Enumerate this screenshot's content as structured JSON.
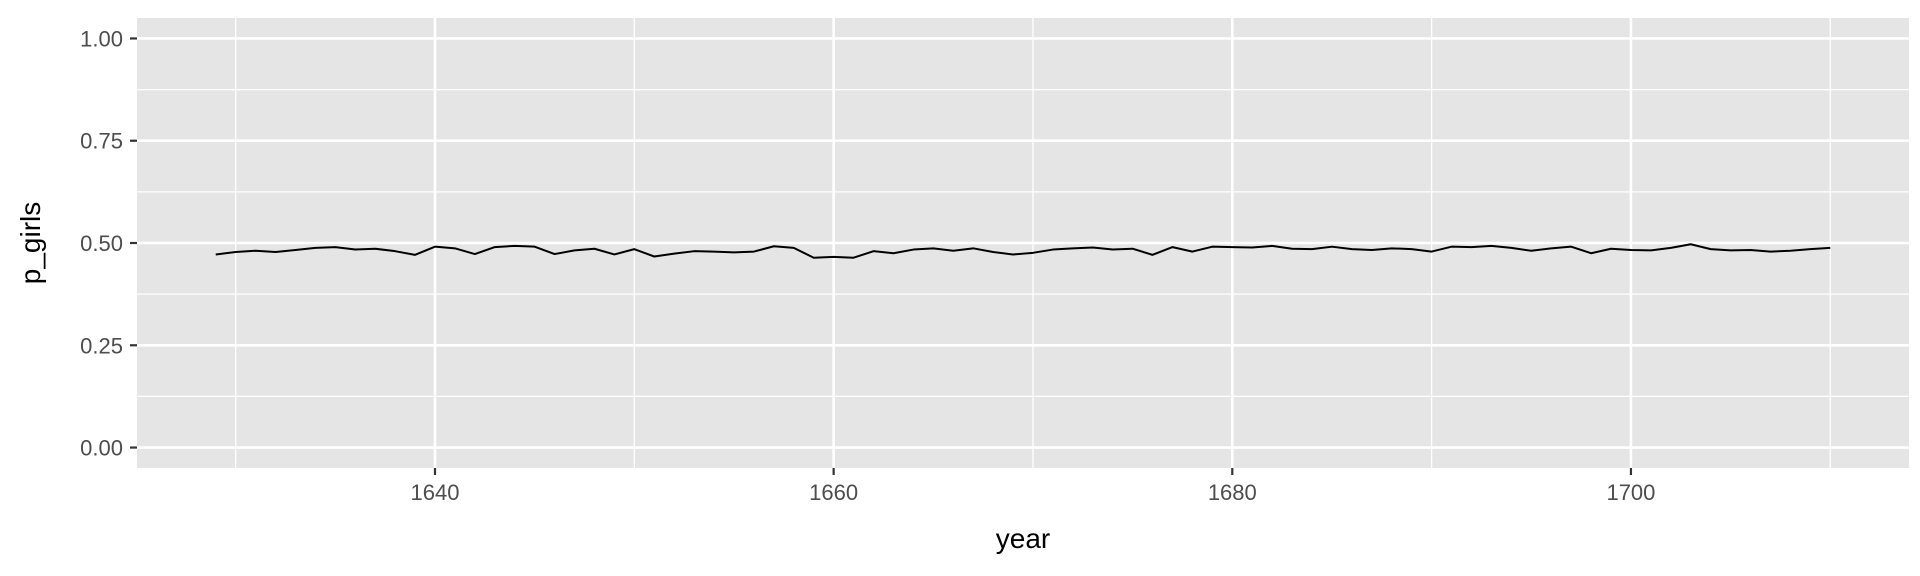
{
  "chart_data": {
    "type": "line",
    "title": "",
    "xlabel": "year",
    "ylabel": "p_girls",
    "xlim": [
      1625.05,
      1713.95
    ],
    "ylim": [
      -0.05,
      1.05
    ],
    "x_ticks": [
      1640,
      1660,
      1680,
      1700
    ],
    "x_tick_labels": [
      "1640",
      "1660",
      "1680",
      "1700"
    ],
    "x_minor_ticks": [
      1630,
      1650,
      1670,
      1690,
      1710
    ],
    "y_ticks": [
      0,
      0.25,
      0.5,
      0.75,
      1
    ],
    "y_tick_labels": [
      "0.00",
      "0.25",
      "0.50",
      "0.75",
      "1.00"
    ],
    "y_minor_ticks": [
      0.125,
      0.375,
      0.625,
      0.875
    ],
    "grid": true,
    "legend": "none",
    "colors": {
      "panel_background": "#e5e5e5",
      "grid_line": "#ffffff",
      "line": "#000000",
      "tick_mark": "#333333",
      "tick_label": "#4d4d4d",
      "axis_title": "#000000"
    },
    "series": [
      {
        "x": [
          1629,
          1630,
          1631,
          1632,
          1633,
          1634,
          1635,
          1636,
          1637,
          1638,
          1639,
          1640,
          1641,
          1642,
          1643,
          1644,
          1645,
          1646,
          1647,
          1648,
          1649,
          1650,
          1651,
          1652,
          1653,
          1654,
          1655,
          1656,
          1657,
          1658,
          1659,
          1660,
          1661,
          1662,
          1663,
          1664,
          1665,
          1666,
          1667,
          1668,
          1669,
          1670,
          1671,
          1672,
          1673,
          1674,
          1675,
          1676,
          1677,
          1678,
          1679,
          1680,
          1681,
          1682,
          1683,
          1684,
          1685,
          1686,
          1687,
          1688,
          1689,
          1690,
          1691,
          1692,
          1693,
          1694,
          1695,
          1696,
          1697,
          1698,
          1699,
          1700,
          1701,
          1702,
          1703,
          1704,
          1705,
          1706,
          1707,
          1708,
          1709,
          1710
        ],
        "values": [
          0.472,
          0.478,
          0.481,
          0.478,
          0.483,
          0.488,
          0.49,
          0.484,
          0.486,
          0.48,
          0.471,
          0.491,
          0.487,
          0.473,
          0.49,
          0.493,
          0.491,
          0.473,
          0.482,
          0.486,
          0.472,
          0.485,
          0.467,
          0.474,
          0.48,
          0.479,
          0.477,
          0.479,
          0.492,
          0.488,
          0.464,
          0.466,
          0.464,
          0.48,
          0.475,
          0.484,
          0.487,
          0.481,
          0.487,
          0.478,
          0.472,
          0.476,
          0.484,
          0.487,
          0.489,
          0.484,
          0.486,
          0.471,
          0.49,
          0.479,
          0.491,
          0.49,
          0.489,
          0.493,
          0.486,
          0.485,
          0.491,
          0.485,
          0.483,
          0.487,
          0.485,
          0.479,
          0.491,
          0.49,
          0.493,
          0.488,
          0.481,
          0.487,
          0.491,
          0.475,
          0.486,
          0.483,
          0.482,
          0.488,
          0.497,
          0.485,
          0.482,
          0.483,
          0.479,
          0.481,
          0.485,
          0.488
        ]
      }
    ]
  }
}
